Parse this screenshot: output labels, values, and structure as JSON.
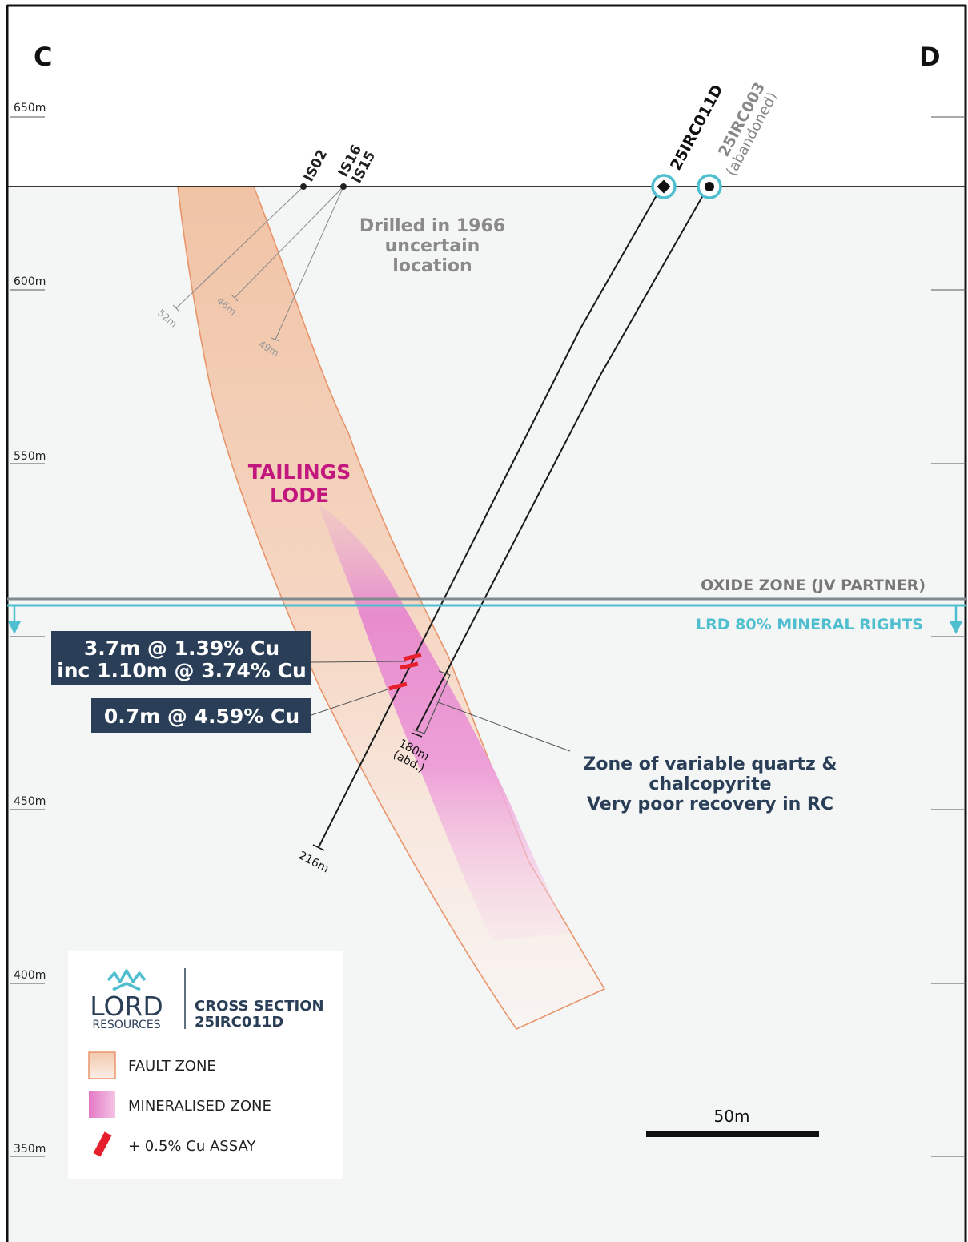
{
  "section": {
    "left_label": "C",
    "right_label": "D"
  },
  "elevations": [
    "650m",
    "600m",
    "550m",
    "450m",
    "400m",
    "350m"
  ],
  "historic_holes": {
    "ids": [
      "IS02",
      "IS16",
      "IS15"
    ],
    "depths": [
      "52m",
      "46m",
      "49m"
    ],
    "note_lines": [
      "Drilled in 1966",
      "uncertain",
      "location"
    ]
  },
  "drillholes": [
    {
      "id": "25IRC011D",
      "status": "",
      "end_depth": "216m"
    },
    {
      "id": "25IRC003",
      "status": "(abandoned)",
      "end_depth_lines": [
        "180m",
        "(abd.)"
      ]
    }
  ],
  "lode": {
    "lines": [
      "TAILINGS",
      "LODE"
    ]
  },
  "zones": {
    "oxide": "OXIDE ZONE (JV PARTNER)",
    "mineral_rights": "LRD 80% MINERAL RIGHTS"
  },
  "intercepts": [
    {
      "lines": [
        "3.7m @ 1.39% Cu",
        "inc 1.10m @ 3.74% Cu"
      ]
    },
    {
      "lines": [
        "0.7m @ 4.59% Cu"
      ]
    }
  ],
  "annotation": {
    "lines": [
      "Zone of variable quartz &",
      "chalcopyrite",
      "Very poor recovery in RC"
    ]
  },
  "scale_bar": {
    "label": "50m"
  },
  "legend": {
    "logo_word": "LORD",
    "logo_sub": "RESOURCES",
    "title_lines": [
      "CROSS SECTION",
      "25IRC011D"
    ],
    "items": [
      {
        "label": "FAULT ZONE"
      },
      {
        "label": "MINERALISED ZONE"
      },
      {
        "label": "+ 0.5% Cu ASSAY"
      }
    ]
  },
  "colors": {
    "navy": "#2a3f57",
    "magenta": "#c2187d",
    "teal": "#4fbfcf",
    "fault_edge": "#e8956b",
    "background": "#f4f6f6"
  }
}
